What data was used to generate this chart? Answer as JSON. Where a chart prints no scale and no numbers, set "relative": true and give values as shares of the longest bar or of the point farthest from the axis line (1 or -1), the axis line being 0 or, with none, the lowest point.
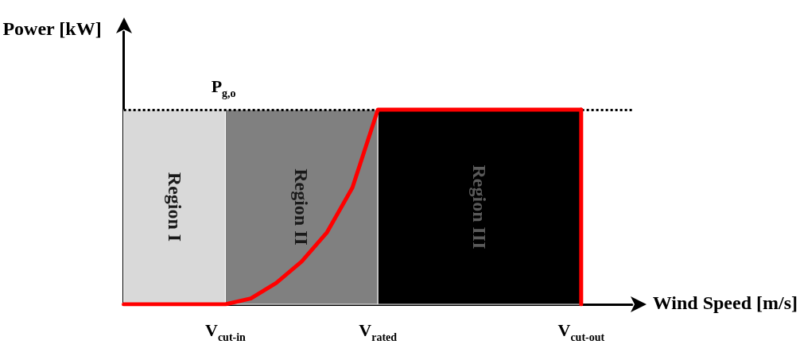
{
  "chart_data": {
    "type": "line",
    "relative": true,
    "xlabel": "Wind Speed [m/s]",
    "ylabel": "Power [kW]",
    "categories": [
      null,
      null,
      null,
      null,
      "V$_{cut-in}$",
      null,
      null,
      null,
      null,
      null,
      "V$_{rated}$",
      null,
      null,
      null,
      null,
      null,
      null,
      null,
      "V$_{cut-out}$",
      null,
      null
    ],
    "series": [
      {
        "color": "#ff0000",
        "values": [
          0,
          0,
          0,
          0,
          0,
          0.03,
          0.11,
          0.22,
          0.37,
          0.6,
          1,
          1,
          1,
          1,
          1,
          1,
          1,
          1,
          1,
          null,
          null
        ]
      },
      {
        "color": "#ff0000",
        "x": [
          "V$_{cut-out}$",
          "V$_{cut-out}$"
        ],
        "values": [
          1,
          0
        ]
      }
    ],
    "annotations": [
      "Region I"
    ],
    "bands": [
      {
        "axis": "x",
        "from": "V$_{cut-in}$",
        "to": "V$_{rated}$",
        "label": "Region II",
        "color": "#808080"
      },
      {
        "axis": "x",
        "from": "V$_{rated}$",
        "to": "V$_{cut-out}$",
        "label": "Region III",
        "color": "#000000"
      }
    ],
    "ref_lines": [
      {
        "axis": "y",
        "value": 1,
        "label": "P$_{g,o}$",
        "color": "#000000",
        "line_style": "dotted"
      }
    ],
    "grid": false,
    "marker": "none",
    "line_style": "solid"
  }
}
